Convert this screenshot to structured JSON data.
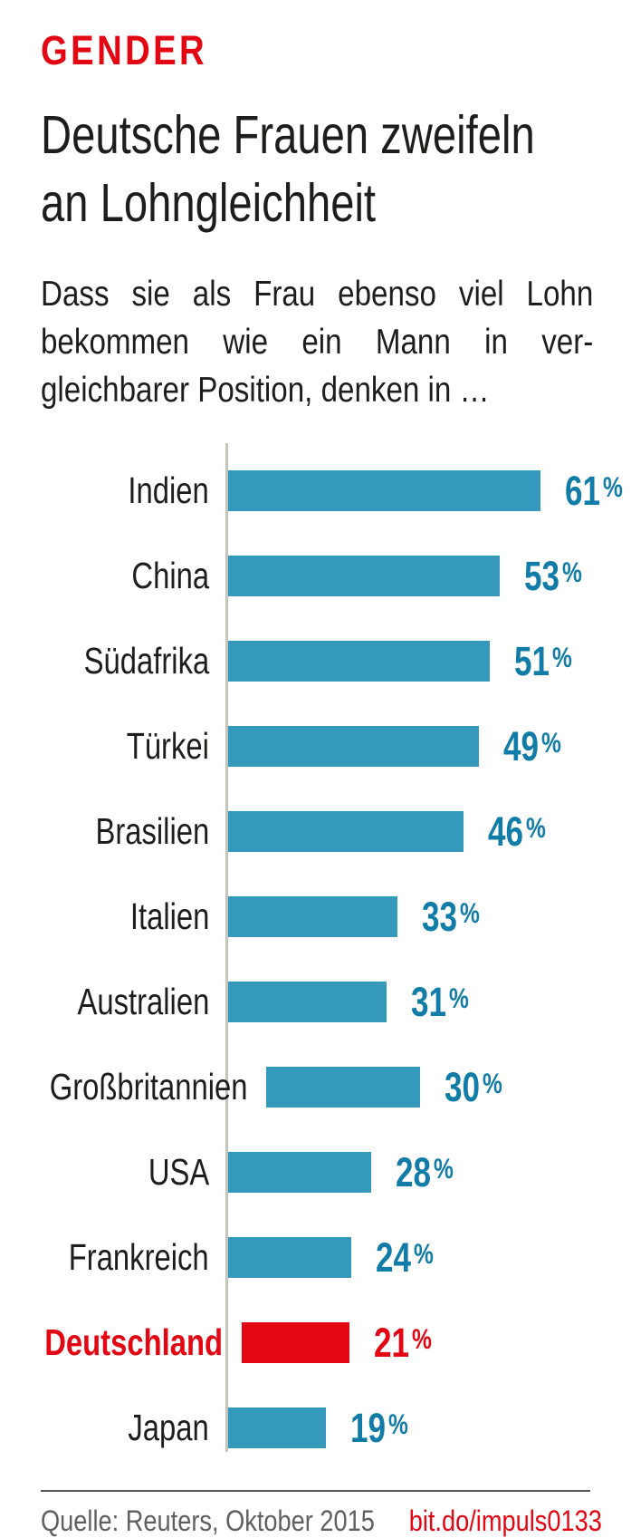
{
  "header": {
    "kicker": "GENDER",
    "title_lines": [
      "Deutsche Frauen zweifeln",
      "an Lohngleichheit"
    ],
    "subtitle_lines": [
      "Dass sie als Frau ebenso viel Lohn",
      "bekommen wie ein Mann in ver-",
      "gleichbarer Position, denken in …"
    ]
  },
  "chart_data": {
    "type": "bar",
    "orientation": "horizontal",
    "unit": "%",
    "value_suffix": "%",
    "categories": [
      "Indien",
      "China",
      "Südafrika",
      "Türkei",
      "Brasilien",
      "Italien",
      "Australien",
      "Großbritannien",
      "USA",
      "Frankreich",
      "Deutschland",
      "Japan"
    ],
    "values": [
      61,
      53,
      51,
      49,
      46,
      33,
      31,
      30,
      28,
      24,
      21,
      19
    ],
    "highlight_category": "Deutschland",
    "xlim": [
      0,
      65
    ],
    "grid": false,
    "legend": false,
    "colors": {
      "bar": "#3499ba",
      "value_label": "#127ca8",
      "highlight": "#e30613",
      "axis": "#c5c5bb"
    }
  },
  "footer": {
    "source": "Quelle: Reuters, Oktober 2015",
    "link": "bit.do/impuls0133"
  }
}
